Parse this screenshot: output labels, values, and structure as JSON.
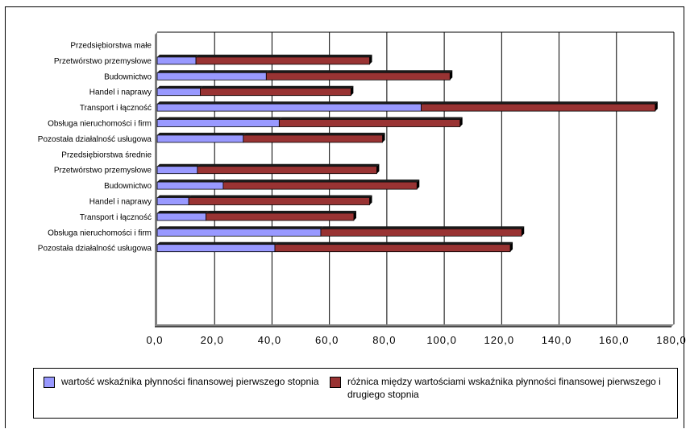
{
  "chart_data": {
    "type": "bar",
    "orientation": "horizontal",
    "stacked": true,
    "xlim": [
      0,
      180
    ],
    "x_ticks": [
      "0,0",
      "20,0",
      "40,0",
      "60,0",
      "80,0",
      "100,0",
      "120,0",
      "140,0",
      "160,0",
      "180,0"
    ],
    "grid": "vertical",
    "categories": [
      "Przedsiębiorstwa małe",
      "Przetwórstwo przemysłowe",
      "Budownictwo",
      "Handel i naprawy",
      "Transport i łączność",
      "Obsługa nieruchomości i firm",
      "Pozostała działalność usługowa",
      "Przedsiębiorstwa średnie",
      "Przetwórstwo przemysłowe",
      "Budownictwo",
      "Handel i naprawy",
      "Transport i łączność",
      "Obsługa nieruchomości i firm",
      "Pozostała działalność usługowa"
    ],
    "series": [
      {
        "name": "wartość wskaźnika płynności finansowej pierwszego stopnia",
        "color": "#9999ff",
        "values": [
          null,
          13.5,
          38,
          15,
          92,
          42.5,
          30,
          null,
          14,
          23,
          11,
          17,
          57,
          41
        ]
      },
      {
        "name": "różnica między wartościami wskaźnika płynności finansowej pierwszego i drugiego stopnia",
        "color": "#993333",
        "values": [
          null,
          60.5,
          64,
          52.5,
          81.5,
          63,
          48.5,
          null,
          62.5,
          67.5,
          63,
          51.5,
          70,
          82
        ]
      }
    ],
    "legend_position": "bottom"
  }
}
